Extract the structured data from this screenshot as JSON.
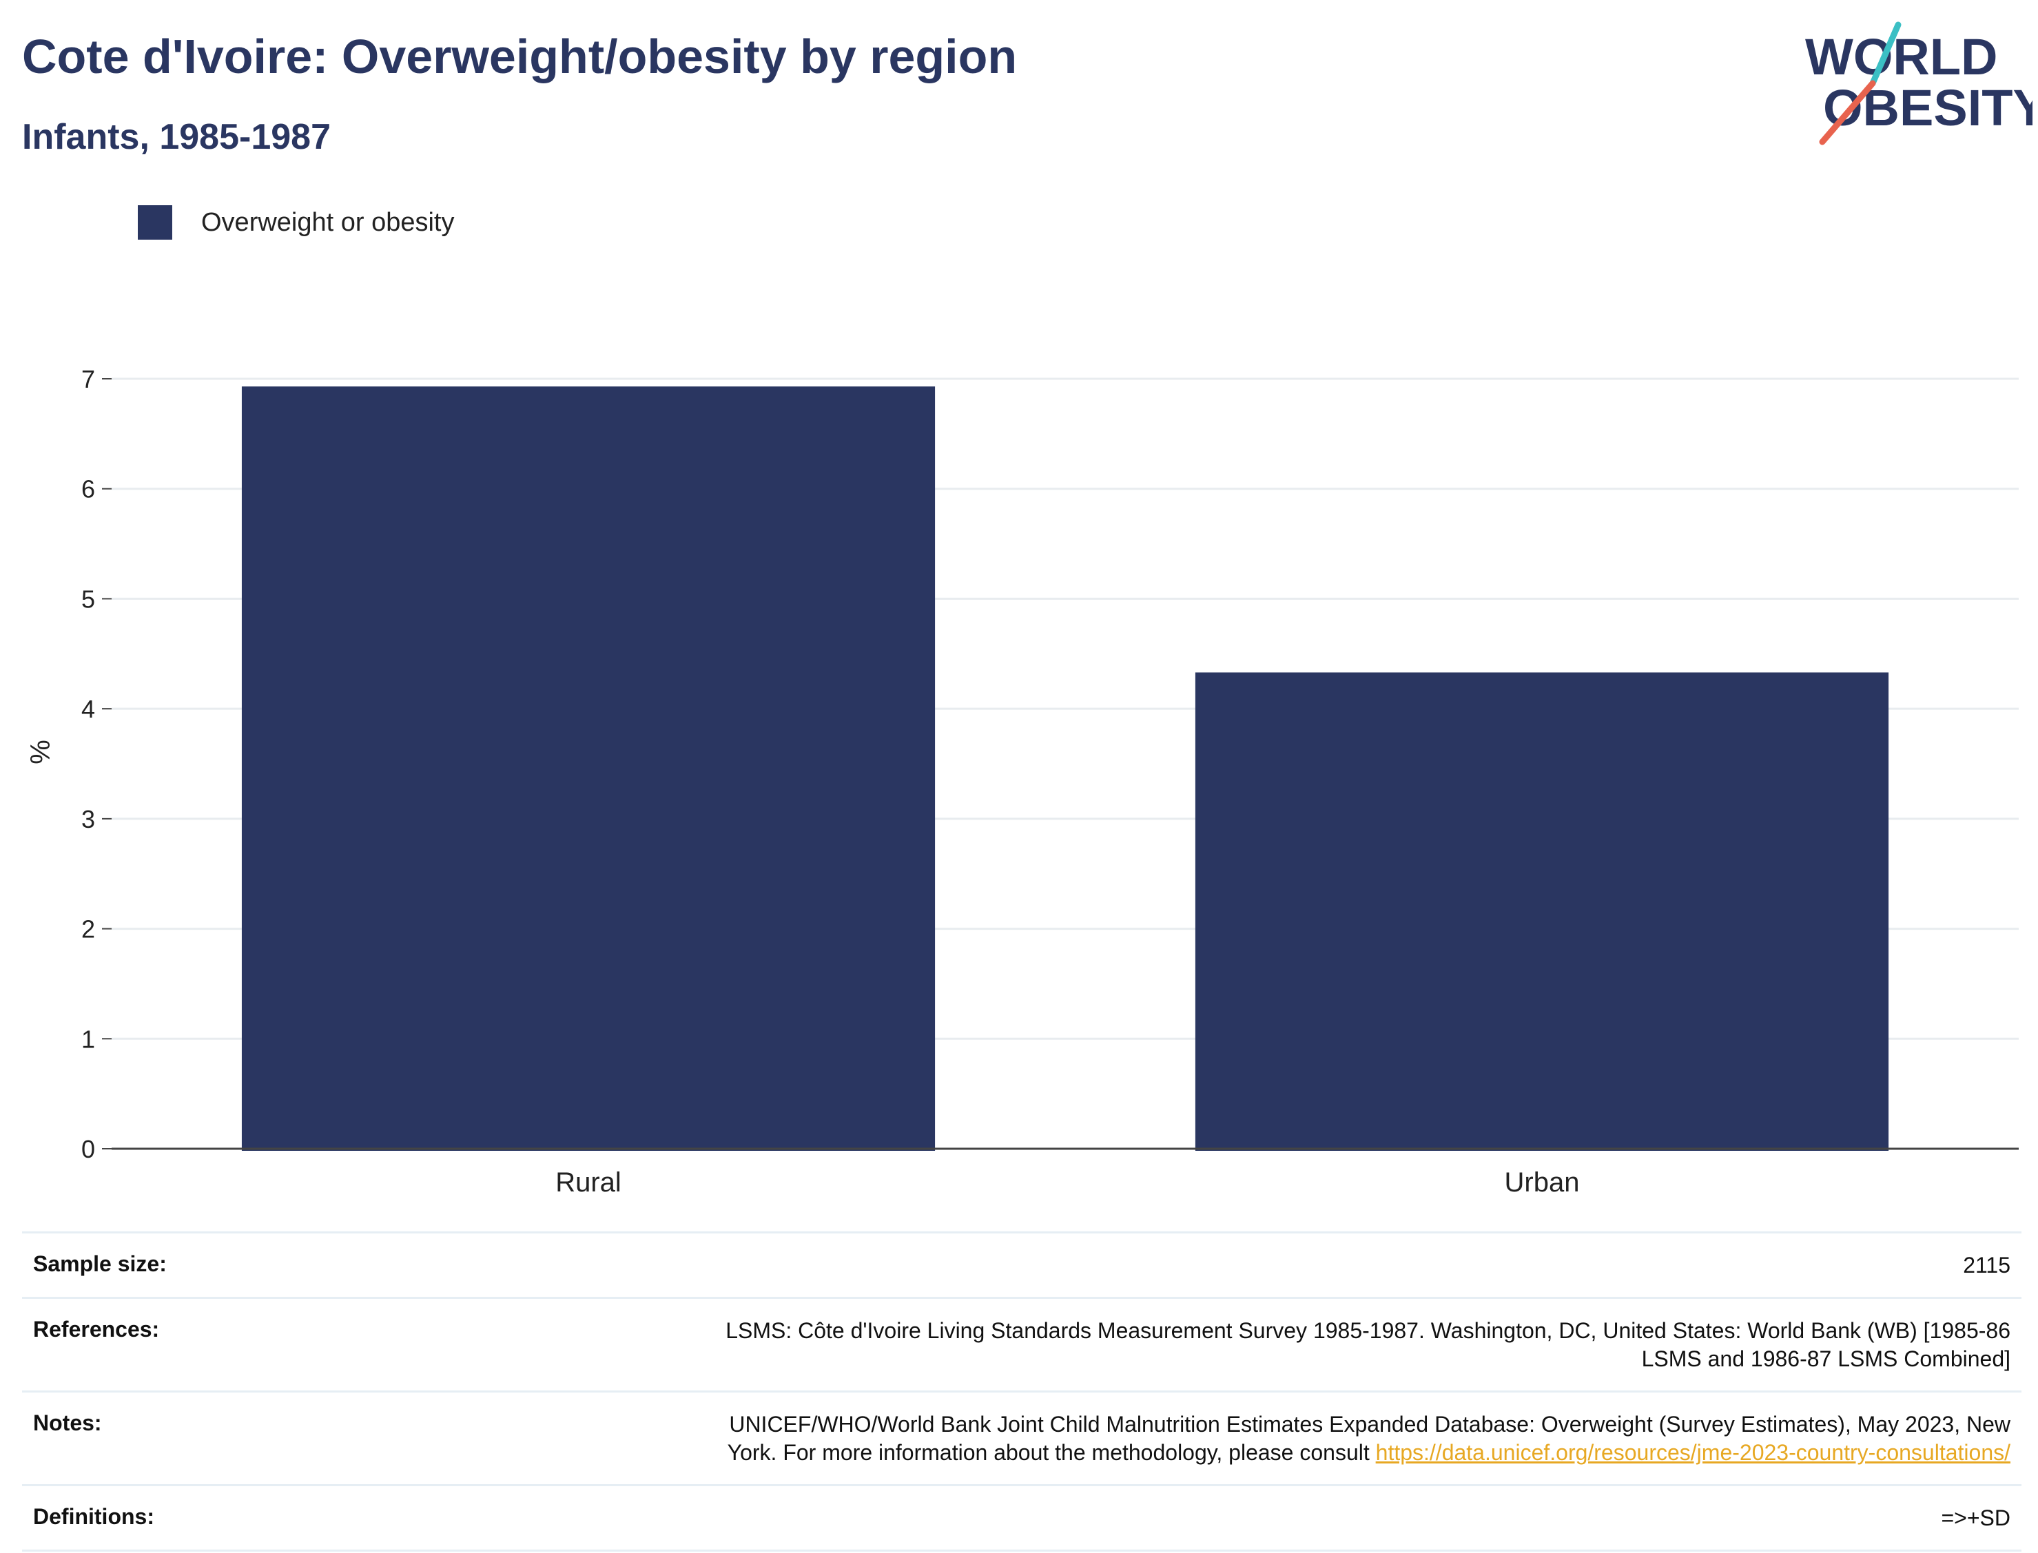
{
  "header": {
    "title": "Cote d'Ivoire: Overweight/obesity by region",
    "subtitle": "Infants, 1985-1987"
  },
  "logo": {
    "line1": "WORLD",
    "line2": "OBESITY",
    "slash_colors": [
      "#3bbfc4",
      "#e8634e"
    ]
  },
  "legend": {
    "label": "Overweight or obesity",
    "color": "#2a3661"
  },
  "chart_data": {
    "type": "bar",
    "categories": [
      "Rural",
      "Urban"
    ],
    "series": [
      {
        "name": "Overweight or obesity",
        "values": [
          6.93,
          4.33
        ],
        "color": "#2a3661"
      }
    ],
    "ylabel": "%",
    "ylim": [
      0,
      7
    ],
    "yticks": [
      "0",
      "1",
      "2",
      "3",
      "4",
      "5",
      "6",
      "7"
    ],
    "grid": true,
    "legend_position": "top-left"
  },
  "info": {
    "sample_size": {
      "label": "Sample size:",
      "value": "2115"
    },
    "references": {
      "label": "References:",
      "line1": "LSMS: Côte d'Ivoire Living Standards Measurement Survey 1985-1987. Washington, DC, United States: World Bank (WB) [1985-86",
      "line2": "LSMS and 1986-87 LSMS Combined]"
    },
    "notes": {
      "label": "Notes:",
      "line1": "UNICEF/WHO/World Bank Joint Child Malnutrition Estimates Expanded Database: Overweight (Survey Estimates), May 2023, New",
      "line2": "York. For more information about the methodology, please consult",
      "link": "https://data.unicef.org/resources/jme-2023-country-consultations/"
    },
    "definitions": {
      "label": "Definitions:",
      "value": "=>+SD"
    }
  }
}
